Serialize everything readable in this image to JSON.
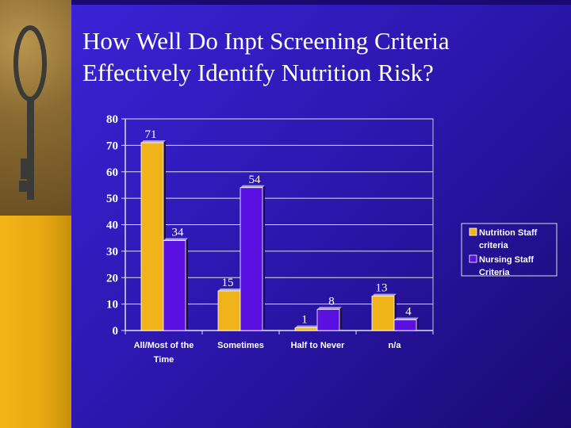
{
  "slide": {
    "title_line1": "How Well Do Inpt Screening Criteria",
    "title_line2": "Effectively Identify Nutrition Risk?"
  },
  "colors": {
    "background": "#2a15a8",
    "series1": "#f0b41a",
    "series2": "#5a10e0",
    "text": "#ffffff"
  },
  "chart_data": {
    "type": "bar",
    "title": "",
    "xlabel": "",
    "ylabel": "",
    "ylim": [
      0,
      80
    ],
    "yticks": [
      0,
      10,
      20,
      30,
      40,
      50,
      60,
      70,
      80
    ],
    "grid": true,
    "legend_position": "right",
    "categories": [
      [
        "All/Most of the",
        "Time"
      ],
      [
        "Sometimes"
      ],
      [
        "Half to Never"
      ],
      [
        "n/a"
      ]
    ],
    "series": [
      {
        "name": [
          "Nutrition Staff",
          "criteria"
        ],
        "values": [
          71,
          15,
          1,
          13
        ],
        "color": "#f0b41a"
      },
      {
        "name": [
          "Nursing Staff",
          "Criteria"
        ],
        "values": [
          34,
          54,
          8,
          4
        ],
        "color": "#5a10e0"
      }
    ]
  }
}
